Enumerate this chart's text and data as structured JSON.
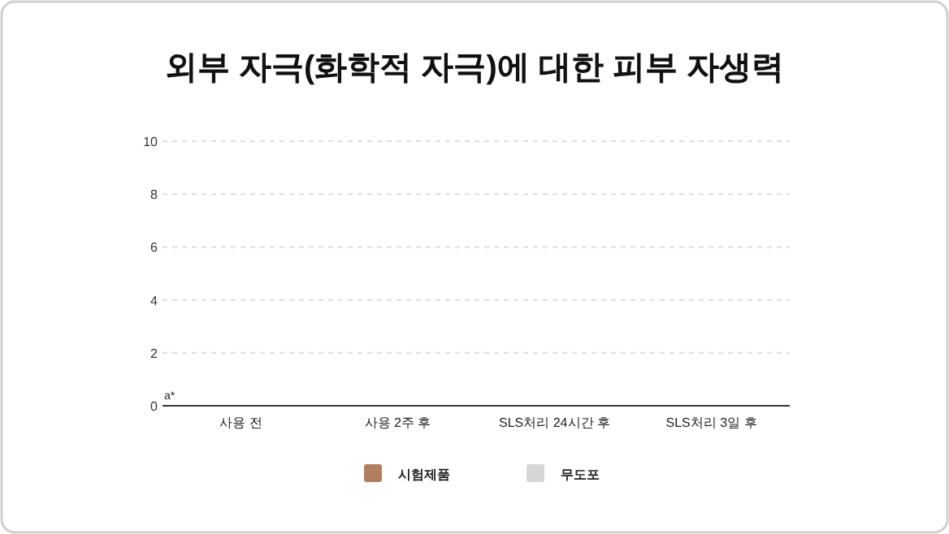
{
  "chart_data": {
    "type": "bar",
    "title": "외부 자극(화학적 자극)에 대한 피부 자생력",
    "categories": [
      "사용 전",
      "사용 2주 후",
      "SLS처리 24시간 후",
      "SLS처리 3일 후"
    ],
    "series": [
      {
        "name": "시험제품",
        "color": "#b07f5f",
        "values": [
          0,
          0,
          0,
          0
        ]
      },
      {
        "name": "무도포",
        "color": "#d6d6d6",
        "values": [
          0,
          0,
          0,
          0
        ]
      }
    ],
    "ylim": [
      0,
      10
    ],
    "yticks": [
      0,
      2,
      4,
      6,
      8,
      10
    ],
    "grid": "y",
    "legend": "bottom",
    "annotations": [
      "a*"
    ]
  }
}
